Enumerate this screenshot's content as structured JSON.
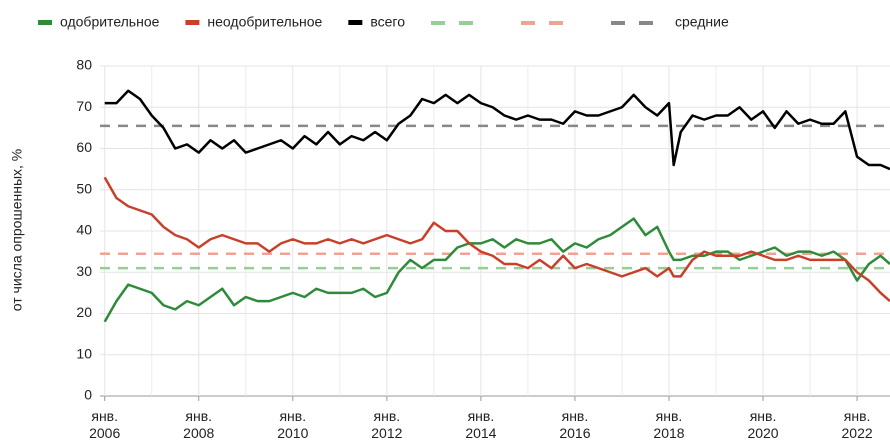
{
  "chart_data": {
    "type": "line",
    "y_label": "от числа опрошенных, %",
    "x": [
      2006,
      2006.25,
      2006.5,
      2006.75,
      2007,
      2007.25,
      2007.5,
      2007.75,
      2008,
      2008.25,
      2008.5,
      2008.75,
      2009,
      2009.25,
      2009.5,
      2009.75,
      2010,
      2010.25,
      2010.5,
      2010.75,
      2011,
      2011.25,
      2011.5,
      2011.75,
      2012,
      2012.25,
      2012.5,
      2012.75,
      2013,
      2013.25,
      2013.5,
      2013.75,
      2014,
      2014.25,
      2014.5,
      2014.75,
      2015,
      2015.25,
      2015.5,
      2015.75,
      2016,
      2016.25,
      2016.5,
      2016.75,
      2017,
      2017.25,
      2017.5,
      2017.75,
      2018,
      2018.1,
      2018.25,
      2018.5,
      2018.75,
      2019,
      2019.25,
      2019.5,
      2019.75,
      2020,
      2020.25,
      2020.5,
      2020.75,
      2021,
      2021.25,
      2021.5,
      2021.75,
      2022,
      2022.25,
      2022.5,
      2022.7
    ],
    "series": [
      {
        "name": "одобрительное",
        "color": "#2e8b3a",
        "values": [
          18,
          23,
          27,
          26,
          25,
          22,
          21,
          23,
          22,
          24,
          26,
          22,
          24,
          23,
          23,
          24,
          25,
          24,
          26,
          25,
          25,
          25,
          26,
          24,
          25,
          30,
          33,
          31,
          33,
          33,
          36,
          37,
          37,
          38,
          36,
          38,
          37,
          37,
          38,
          35,
          37,
          36,
          38,
          39,
          41,
          43,
          39,
          41,
          35,
          33,
          33,
          34,
          34,
          35,
          35,
          33,
          34,
          35,
          36,
          34,
          35,
          35,
          34,
          35,
          33,
          28,
          32,
          34,
          32
        ]
      },
      {
        "name": "неодобрительное",
        "color": "#c8402a",
        "values": [
          53,
          48,
          46,
          45,
          44,
          41,
          39,
          38,
          36,
          38,
          39,
          38,
          37,
          37,
          35,
          37,
          38,
          37,
          37,
          38,
          37,
          38,
          37,
          38,
          39,
          38,
          37,
          38,
          42,
          40,
          40,
          37,
          35,
          34,
          32,
          32,
          31,
          33,
          31,
          34,
          31,
          32,
          31,
          30,
          29,
          30,
          31,
          29,
          31,
          29,
          29,
          33,
          35,
          34,
          34,
          34,
          35,
          34,
          33,
          33,
          34,
          33,
          33,
          33,
          33,
          30,
          28,
          25,
          23
        ]
      },
      {
        "name": "всего",
        "color": "#000000",
        "values": [
          71,
          71,
          74,
          72,
          68,
          65,
          60,
          61,
          59,
          62,
          60,
          62,
          59,
          60,
          61,
          62,
          60,
          63,
          61,
          64,
          61,
          63,
          62,
          64,
          62,
          66,
          68,
          72,
          71,
          73,
          71,
          73,
          71,
          70,
          68,
          67,
          68,
          67,
          67,
          66,
          69,
          68,
          68,
          69,
          70,
          73,
          70,
          68,
          71,
          56,
          64,
          68,
          67,
          68,
          68,
          70,
          67,
          69,
          65,
          69,
          66,
          67,
          66,
          66,
          69,
          58,
          56,
          56,
          55
        ]
      }
    ],
    "averages": {
      "name": "средние",
      "lines": [
        {
          "value": 31,
          "color": "#95cf95"
        },
        {
          "value": 34.5,
          "color": "#f0a392"
        },
        {
          "value": 65.5,
          "color": "#888888"
        }
      ]
    },
    "xlim": [
      2005.9,
      2022.7
    ],
    "xticks": [
      {
        "value": 2006,
        "label": "янв. 2006"
      },
      {
        "value": 2008,
        "label": "янв. 2008"
      },
      {
        "value": 2010,
        "label": "янв. 2010"
      },
      {
        "value": 2012,
        "label": "янв. 2012"
      },
      {
        "value": 2014,
        "label": "янв. 2014"
      },
      {
        "value": 2016,
        "label": "янв. 2016"
      },
      {
        "value": 2018,
        "label": "янв. 2018"
      },
      {
        "value": 2020,
        "label": "янв. 2020"
      },
      {
        "value": 2022,
        "label": "янв. 2022"
      }
    ],
    "xminorticks": [
      2007,
      2009,
      2011,
      2013,
      2015,
      2017,
      2019,
      2021
    ],
    "ylim": [
      0,
      80
    ],
    "yticks": [
      0,
      10,
      20,
      30,
      40,
      50,
      60,
      70,
      80
    ],
    "grid": true
  }
}
